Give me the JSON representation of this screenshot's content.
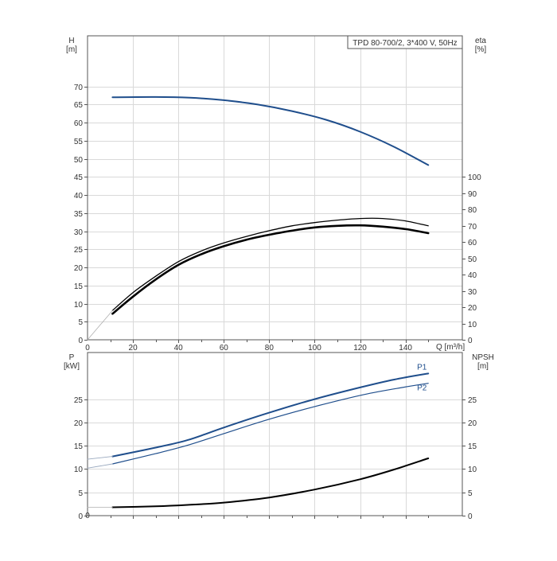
{
  "chart_data": [
    {
      "type": "line",
      "panel": "top",
      "title": "TPD 80-700/2, 3*400 V, 50Hz",
      "xlabel": "Q [m³/h]",
      "ylabel_name": "H",
      "ylabel_unit": "[m]",
      "y2label_name": "eta",
      "y2label_unit": "[%]",
      "xlim": [
        0,
        165
      ],
      "ylim": [
        0,
        84
      ],
      "y2lim": [
        0,
        186.7
      ],
      "x_ticks": [
        0,
        20,
        40,
        60,
        80,
        100,
        120,
        140
      ],
      "y_ticks": [
        0,
        5,
        10,
        15,
        20,
        25,
        30,
        35,
        40,
        45,
        50,
        55,
        60,
        65,
        70
      ],
      "y2_ticks": [
        0,
        10,
        20,
        30,
        40,
        50,
        60,
        70,
        80,
        90,
        100
      ],
      "grid": true,
      "series": [
        {
          "axis": "left",
          "color": "#1f4e8c",
          "width": 2,
          "x": [
            11,
            30,
            45,
            60,
            75,
            90,
            105,
            120,
            135,
            150
          ],
          "y": [
            67,
            67.1,
            66.9,
            66.2,
            65.0,
            63.2,
            60.8,
            57.5,
            53.3,
            48.3
          ]
        },
        {
          "axis": "right",
          "color": "#000000",
          "width": 1.3,
          "x": [
            11,
            20,
            30,
            40,
            50,
            60,
            70,
            80,
            90,
            100,
            110,
            120,
            130,
            140,
            150
          ],
          "y": [
            18,
            29,
            39,
            48,
            54.5,
            59.5,
            63.5,
            67,
            70,
            72,
            73.5,
            74.5,
            74.5,
            73,
            70
          ]
        },
        {
          "axis": "right",
          "color": "#000000",
          "width": 2.6,
          "x": [
            11,
            20,
            30,
            40,
            50,
            60,
            70,
            80,
            90,
            100,
            110,
            120,
            130,
            140,
            150
          ],
          "y": [
            16,
            26.5,
            37,
            46,
            52.5,
            57.5,
            61.5,
            64.5,
            67,
            69,
            70,
            70.3,
            69.5,
            68,
            65.5
          ]
        },
        {
          "axis": "right",
          "color": "#b0b0b0",
          "width": 0.8,
          "x": [
            0,
            11
          ],
          "y": [
            0,
            18
          ]
        }
      ]
    },
    {
      "type": "line",
      "panel": "bottom",
      "ylabel_name": "P",
      "ylabel_unit": "[kW]",
      "y2label_name": "NPSH",
      "y2label_unit": "[m]",
      "xlim": [
        0,
        165
      ],
      "ylim": [
        0,
        35
      ],
      "y2lim": [
        0,
        35
      ],
      "y_ticks": [
        0,
        5,
        10,
        15,
        20,
        25
      ],
      "y2_ticks": [
        0,
        5,
        10,
        15,
        20,
        25
      ],
      "grid": true,
      "series": [
        {
          "name": "P1",
          "axis": "left",
          "color": "#1f4e8c",
          "width": 2,
          "x": [
            11,
            30,
            44,
            60,
            80,
            100,
            120,
            135,
            150
          ],
          "y": [
            12.7,
            14.6,
            16.2,
            18.9,
            22.1,
            25.0,
            27.5,
            29.2,
            30.5
          ]
        },
        {
          "name": "P2",
          "axis": "left",
          "color": "#1f4e8c",
          "width": 1.2,
          "x": [
            11,
            30,
            44,
            60,
            80,
            100,
            120,
            135,
            150
          ],
          "y": [
            11.1,
            13.3,
            15.1,
            17.6,
            20.7,
            23.4,
            25.8,
            27.2,
            28.4
          ]
        },
        {
          "axis": "left",
          "color": "#9aa9bf",
          "width": 0.9,
          "x": [
            0,
            11
          ],
          "y": [
            12.1,
            12.7
          ]
        },
        {
          "axis": "left",
          "color": "#9aa9bf",
          "width": 0.9,
          "x": [
            0,
            11
          ],
          "y": [
            10.2,
            11.1
          ]
        },
        {
          "axis": "right",
          "color": "#000000",
          "width": 2,
          "x": [
            11,
            30,
            44,
            60,
            80,
            100,
            120,
            135,
            150
          ],
          "y": [
            1.8,
            2.0,
            2.3,
            2.8,
            3.9,
            5.6,
            7.8,
            9.9,
            12.3
          ]
        },
        {
          "axis": "right",
          "color": "#b0b0b0",
          "width": 0.8,
          "x": [
            0,
            11
          ],
          "y": [
            1.8,
            1.8
          ]
        }
      ]
    }
  ]
}
